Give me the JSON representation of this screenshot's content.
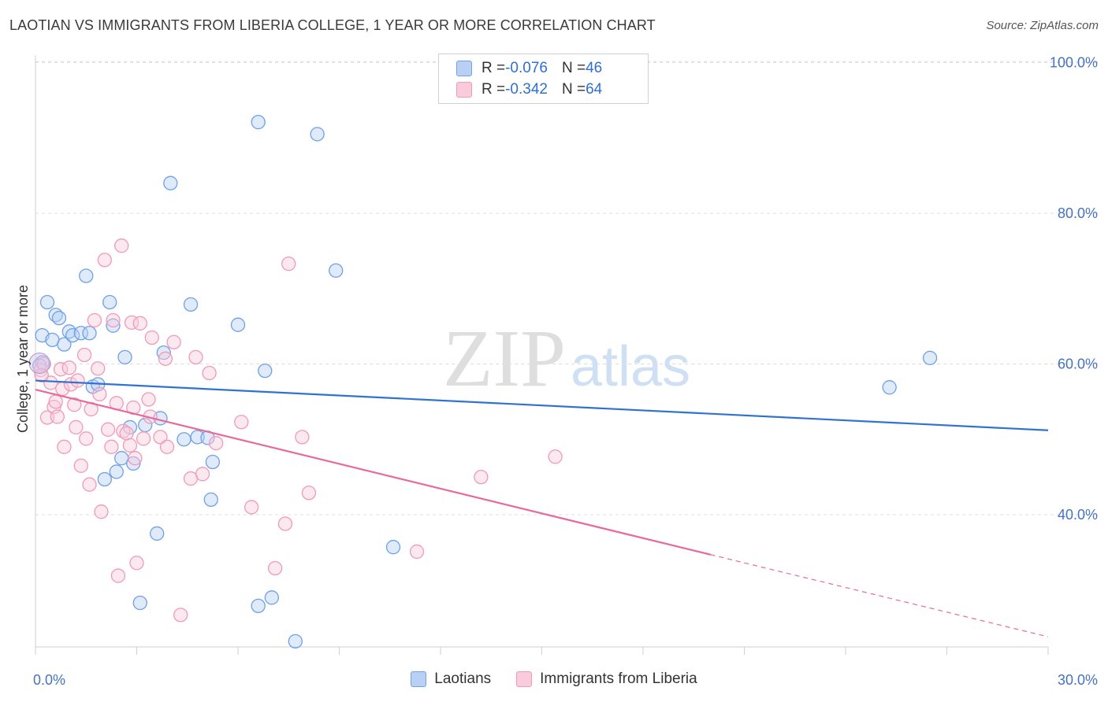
{
  "title": "LAOTIAN VS IMMIGRANTS FROM LIBERIA COLLEGE, 1 YEAR OR MORE CORRELATION CHART",
  "source": "Source: ZipAtlas.com",
  "watermark": {
    "zip": "ZIP",
    "atlas": "atlas"
  },
  "legend": {
    "rows": [
      {
        "r_label": "R = ",
        "r_value": "-0.076",
        "n_label": "N = ",
        "n_value": "46"
      },
      {
        "r_label": "R = ",
        "r_value": "-0.342",
        "n_label": "N = ",
        "n_value": "64"
      }
    ]
  },
  "chart_data": {
    "type": "scatter",
    "ylabel": "College, 1 year or more",
    "xlim": [
      0,
      30
    ],
    "ylim": [
      22,
      102
    ],
    "x_tick_labels": [
      {
        "x": 0,
        "label": "0.0%"
      },
      {
        "x": 30,
        "label": "30.0%"
      }
    ],
    "y_tick_labels": [
      {
        "y": 40,
        "label": "40.0%"
      },
      {
        "y": 60,
        "label": "60.0%"
      },
      {
        "y": 80,
        "label": "80.0%"
      },
      {
        "y": 100,
        "label": "100.0%"
      }
    ],
    "grid": true,
    "legend_placement": "top-center",
    "series": [
      {
        "name": "Laotians",
        "color": "#6fa0e8",
        "fill": "#b7d0f4",
        "trend_color": "#2f72d2",
        "r": -0.076,
        "n": 46,
        "trend": {
          "x": [
            0,
            30
          ],
          "y": [
            57.8,
            51.2
          ]
        },
        "points": [
          [
            0.2,
            60.2
          ],
          [
            0.2,
            63.8
          ],
          [
            0.35,
            68.2
          ],
          [
            0.5,
            63.2
          ],
          [
            0.6,
            66.5
          ],
          [
            0.7,
            66.1
          ],
          [
            0.85,
            62.6
          ],
          [
            1.0,
            64.3
          ],
          [
            1.1,
            63.8
          ],
          [
            1.35,
            64.1
          ],
          [
            1.6,
            64.1
          ],
          [
            1.5,
            71.7
          ],
          [
            2.2,
            68.2
          ],
          [
            2.3,
            65.1
          ],
          [
            1.7,
            57.0
          ],
          [
            1.85,
            57.3
          ],
          [
            2.65,
            60.9
          ],
          [
            3.8,
            61.5
          ],
          [
            3.7,
            52.8
          ],
          [
            3.25,
            51.9
          ],
          [
            2.8,
            51.6
          ],
          [
            2.55,
            47.5
          ],
          [
            2.9,
            46.8
          ],
          [
            2.4,
            45.7
          ],
          [
            2.05,
            44.7
          ],
          [
            4.4,
            50.0
          ],
          [
            4.6,
            67.9
          ],
          [
            4.8,
            50.3
          ],
          [
            5.1,
            50.2
          ],
          [
            5.25,
            47.0
          ],
          [
            5.2,
            42.0
          ],
          [
            4.0,
            84.0
          ],
          [
            6.6,
            92.1
          ],
          [
            8.35,
            90.5
          ],
          [
            6.0,
            65.2
          ],
          [
            6.8,
            59.1
          ],
          [
            8.9,
            72.4
          ],
          [
            3.6,
            37.5
          ],
          [
            3.1,
            28.3
          ],
          [
            10.6,
            35.7
          ],
          [
            6.6,
            27.9
          ],
          [
            7.0,
            29.0
          ],
          [
            7.7,
            23.2
          ],
          [
            25.3,
            56.9
          ],
          [
            26.5,
            60.8
          ],
          [
            0.12,
            59.8
          ]
        ]
      },
      {
        "name": "Immigrants from Liberia",
        "color": "#f09ab6",
        "fill": "#f9cbdb",
        "trend_color": "#e8699a",
        "r": -0.342,
        "n": 64,
        "trend": {
          "x": [
            0,
            20
          ],
          "y": [
            56.6,
            34.7
          ]
        },
        "trend_dashed": {
          "x": [
            20,
            30
          ],
          "y": [
            34.7,
            23.8
          ]
        },
        "points": [
          [
            0.15,
            59.2
          ],
          [
            0.25,
            60.0
          ],
          [
            0.35,
            52.9
          ],
          [
            0.45,
            57.5
          ],
          [
            0.55,
            54.3
          ],
          [
            0.6,
            55.0
          ],
          [
            0.75,
            59.3
          ],
          [
            0.8,
            56.7
          ],
          [
            0.85,
            49.0
          ],
          [
            1.0,
            59.5
          ],
          [
            1.05,
            57.3
          ],
          [
            1.15,
            54.6
          ],
          [
            1.2,
            51.6
          ],
          [
            1.35,
            46.5
          ],
          [
            1.45,
            61.2
          ],
          [
            1.5,
            50.1
          ],
          [
            1.6,
            44.0
          ],
          [
            1.65,
            54.0
          ],
          [
            1.75,
            65.8
          ],
          [
            1.85,
            59.4
          ],
          [
            1.9,
            56.0
          ],
          [
            1.95,
            40.4
          ],
          [
            2.05,
            73.8
          ],
          [
            2.15,
            51.3
          ],
          [
            2.25,
            49.0
          ],
          [
            2.3,
            65.8
          ],
          [
            2.4,
            54.8
          ],
          [
            2.45,
            31.9
          ],
          [
            2.55,
            75.7
          ],
          [
            2.6,
            51.1
          ],
          [
            2.7,
            50.8
          ],
          [
            2.8,
            49.2
          ],
          [
            2.85,
            65.5
          ],
          [
            2.9,
            54.2
          ],
          [
            3.0,
            33.6
          ],
          [
            3.1,
            65.4
          ],
          [
            3.2,
            50.1
          ],
          [
            3.35,
            55.3
          ],
          [
            3.4,
            53.0
          ],
          [
            3.45,
            63.5
          ],
          [
            3.7,
            50.3
          ],
          [
            3.85,
            60.7
          ],
          [
            3.9,
            49.0
          ],
          [
            4.1,
            62.9
          ],
          [
            4.3,
            26.7
          ],
          [
            4.6,
            44.8
          ],
          [
            4.75,
            60.9
          ],
          [
            4.95,
            45.4
          ],
          [
            5.15,
            58.8
          ],
          [
            5.35,
            49.5
          ],
          [
            6.1,
            52.3
          ],
          [
            6.4,
            41.0
          ],
          [
            7.1,
            32.9
          ],
          [
            7.4,
            38.8
          ],
          [
            7.5,
            73.3
          ],
          [
            7.9,
            50.3
          ],
          [
            8.1,
            42.9
          ],
          [
            11.3,
            35.1
          ],
          [
            13.2,
            45.0
          ],
          [
            15.4,
            47.7
          ],
          [
            0.18,
            58.5
          ],
          [
            0.65,
            53.0
          ],
          [
            1.25,
            57.8
          ],
          [
            2.95,
            47.5
          ]
        ]
      }
    ]
  }
}
